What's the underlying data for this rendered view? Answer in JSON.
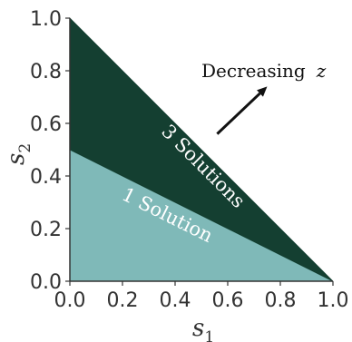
{
  "chart_data": {
    "type": "area",
    "xlim": [
      0.0,
      1.0
    ],
    "ylim": [
      0.0,
      1.0
    ],
    "x_ticks": [
      "0.0",
      "0.2",
      "0.4",
      "0.6",
      "0.8",
      "1.0"
    ],
    "y_ticks": [
      "0.0",
      "0.2",
      "0.4",
      "0.6",
      "0.8",
      "1.0"
    ],
    "xlabel": {
      "base": "s",
      "sub": "1"
    },
    "ylabel": {
      "base": "s",
      "sub": "2"
    },
    "regions": [
      {
        "label": "1 Solution",
        "color": "#7fb9b8",
        "vertices": [
          [
            0.0,
            0.0
          ],
          [
            1.0,
            0.0
          ],
          [
            0.0,
            0.5
          ]
        ]
      },
      {
        "label": "3 Solutions",
        "color": "#143f31",
        "vertices": [
          [
            0.0,
            0.5
          ],
          [
            1.0,
            0.0
          ],
          [
            0.0,
            1.0
          ]
        ]
      }
    ],
    "annotation": {
      "text": "Decreasing",
      "var": "z",
      "arrow_from": [
        0.56,
        0.56
      ],
      "arrow_to": [
        0.75,
        0.74
      ]
    },
    "grid": false
  }
}
